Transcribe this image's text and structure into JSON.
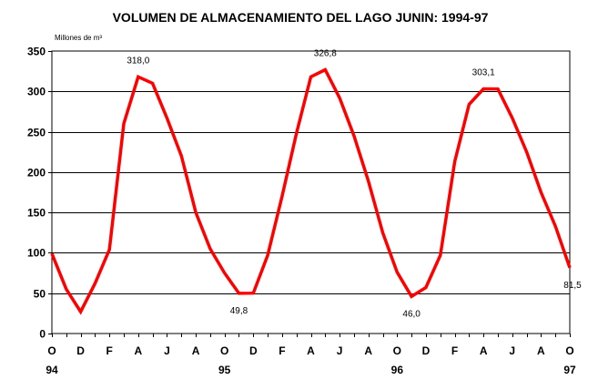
{
  "chart_data": {
    "type": "line",
    "title": "VOLUMEN DE ALMACENAMIENTO DEL LAGO JUNIN: 1994-97",
    "ylabel": "Millones de m³",
    "xlabel": "",
    "ylim": [
      0,
      350
    ],
    "yticks": [
      "0",
      "50",
      "100",
      "150",
      "200",
      "250",
      "300",
      "350"
    ],
    "grid": true,
    "line_color": "#ff0000",
    "month_tick_labels": [
      "O",
      "D",
      "F",
      "A",
      "J",
      "A",
      "O",
      "D",
      "F",
      "A",
      "J",
      "A",
      "O",
      "D",
      "F",
      "A",
      "J",
      "A",
      "O"
    ],
    "year_tick_labels": [
      {
        "month_index": 0,
        "label": "94"
      },
      {
        "month_index": 12,
        "label": "95"
      },
      {
        "month_index": 24,
        "label": "96"
      },
      {
        "month_index": 36,
        "label": "97"
      }
    ],
    "series": [
      {
        "values": [
          99,
          55,
          27,
          62,
          104,
          260,
          318,
          310,
          267,
          220,
          150,
          105,
          75,
          49.8,
          50,
          97,
          170,
          248,
          318,
          326.8,
          292,
          245,
          189,
          125,
          76,
          46,
          57,
          97,
          213,
          284,
          303.1,
          303,
          267,
          225,
          175,
          133,
          81.5
        ]
      }
    ],
    "annotations": [
      {
        "month_index": 6,
        "text": "318,0",
        "position": "above"
      },
      {
        "month_index": 19,
        "text": "326,8",
        "position": "above"
      },
      {
        "month_index": 30,
        "text": "303,1",
        "position": "above"
      },
      {
        "month_index": 13,
        "text": "49,8",
        "position": "below"
      },
      {
        "month_index": 25,
        "text": "46,0",
        "position": "below"
      },
      {
        "month_index": 36,
        "text": "81,5",
        "position": "below"
      }
    ]
  }
}
